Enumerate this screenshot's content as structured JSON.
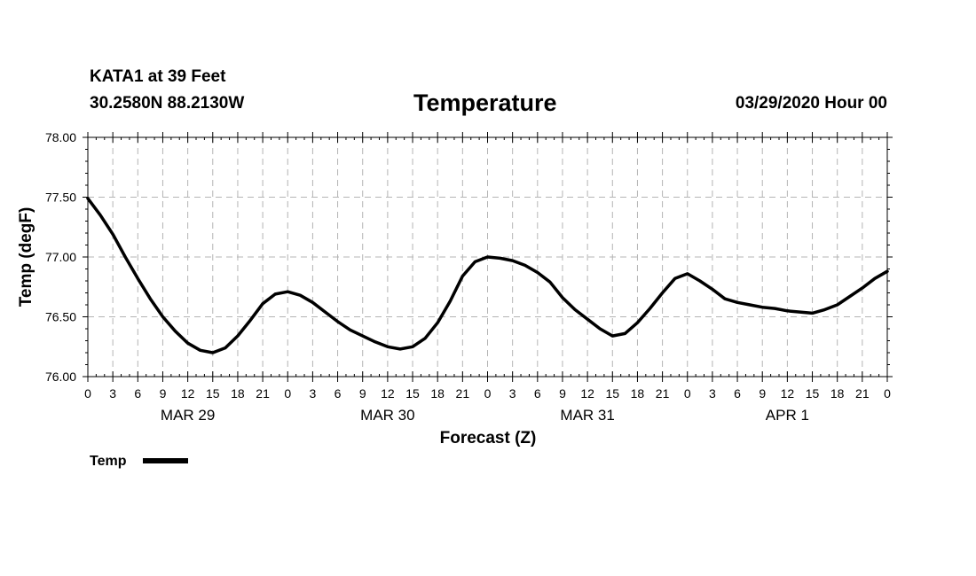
{
  "header": {
    "station": "KATA1 at 39 Feet",
    "coords": "30.2580N 88.2130W",
    "title": "Temperature",
    "issued": "03/29/2020 Hour 00"
  },
  "chart_data": {
    "type": "line",
    "title": "Temperature",
    "xlabel": "Forecast (Z)",
    "ylabel": "Temp (degF)",
    "xlim": [
      0,
      96
    ],
    "ylim": [
      76.0,
      78.0
    ],
    "grid": true,
    "y_ticks": [
      "76.00",
      "76.50",
      "77.00",
      "77.50",
      "78.00"
    ],
    "x_tick_hours": [
      0,
      3,
      6,
      9,
      12,
      15,
      18,
      21,
      24,
      27,
      30,
      33,
      36,
      39,
      42,
      45,
      48,
      51,
      54,
      57,
      60,
      63,
      66,
      69,
      72,
      75,
      78,
      81,
      84,
      87,
      90,
      93,
      96
    ],
    "x_tick_labels": [
      "0",
      "3",
      "6",
      "9",
      "12",
      "15",
      "18",
      "21",
      "0",
      "3",
      "6",
      "9",
      "12",
      "15",
      "18",
      "21",
      "0",
      "3",
      "6",
      "9",
      "12",
      "15",
      "18",
      "21",
      "0",
      "3",
      "6",
      "9",
      "12",
      "15",
      "18",
      "21",
      "0"
    ],
    "day_labels": [
      {
        "hour": 12,
        "label": "MAR 29"
      },
      {
        "hour": 36,
        "label": "MAR 30"
      },
      {
        "hour": 60,
        "label": "MAR 31"
      },
      {
        "hour": 84,
        "label": "APR 1"
      }
    ],
    "legend": "bottom-left",
    "series": [
      {
        "name": "Temp",
        "x": [
          0,
          1.5,
          3,
          4.5,
          6,
          7.5,
          9,
          10.5,
          12,
          13.5,
          15,
          16.5,
          18,
          19.5,
          21,
          22.5,
          24,
          25.5,
          27,
          28.5,
          30,
          31.5,
          33,
          34.5,
          36,
          37.5,
          39,
          40.5,
          42,
          43.5,
          45,
          46.5,
          48,
          49.5,
          51,
          52.5,
          54,
          55.5,
          57,
          58.5,
          60,
          61.5,
          63,
          64.5,
          66,
          67.5,
          69,
          70.5,
          72,
          73.5,
          75,
          76.5,
          78,
          79.5,
          81,
          82.5,
          84,
          85.5,
          87,
          88.5,
          90,
          91.5,
          93,
          94.5,
          96
        ],
        "values": [
          77.49,
          77.35,
          77.19,
          77.0,
          76.82,
          76.65,
          76.5,
          76.38,
          76.28,
          76.22,
          76.2,
          76.24,
          76.34,
          76.47,
          76.61,
          76.69,
          76.71,
          76.68,
          76.62,
          76.54,
          76.46,
          76.39,
          76.34,
          76.29,
          76.25,
          76.23,
          76.25,
          76.32,
          76.45,
          76.63,
          76.84,
          76.96,
          77.0,
          76.99,
          76.97,
          76.93,
          76.87,
          76.79,
          76.66,
          76.56,
          76.48,
          76.4,
          76.34,
          76.36,
          76.45,
          76.57,
          76.7,
          76.82,
          76.86,
          76.8,
          76.73,
          76.65,
          76.62,
          76.6,
          76.58,
          76.57,
          76.55,
          76.54,
          76.53,
          76.56,
          76.6,
          76.67,
          76.74,
          76.82,
          76.88
        ]
      }
    ]
  }
}
